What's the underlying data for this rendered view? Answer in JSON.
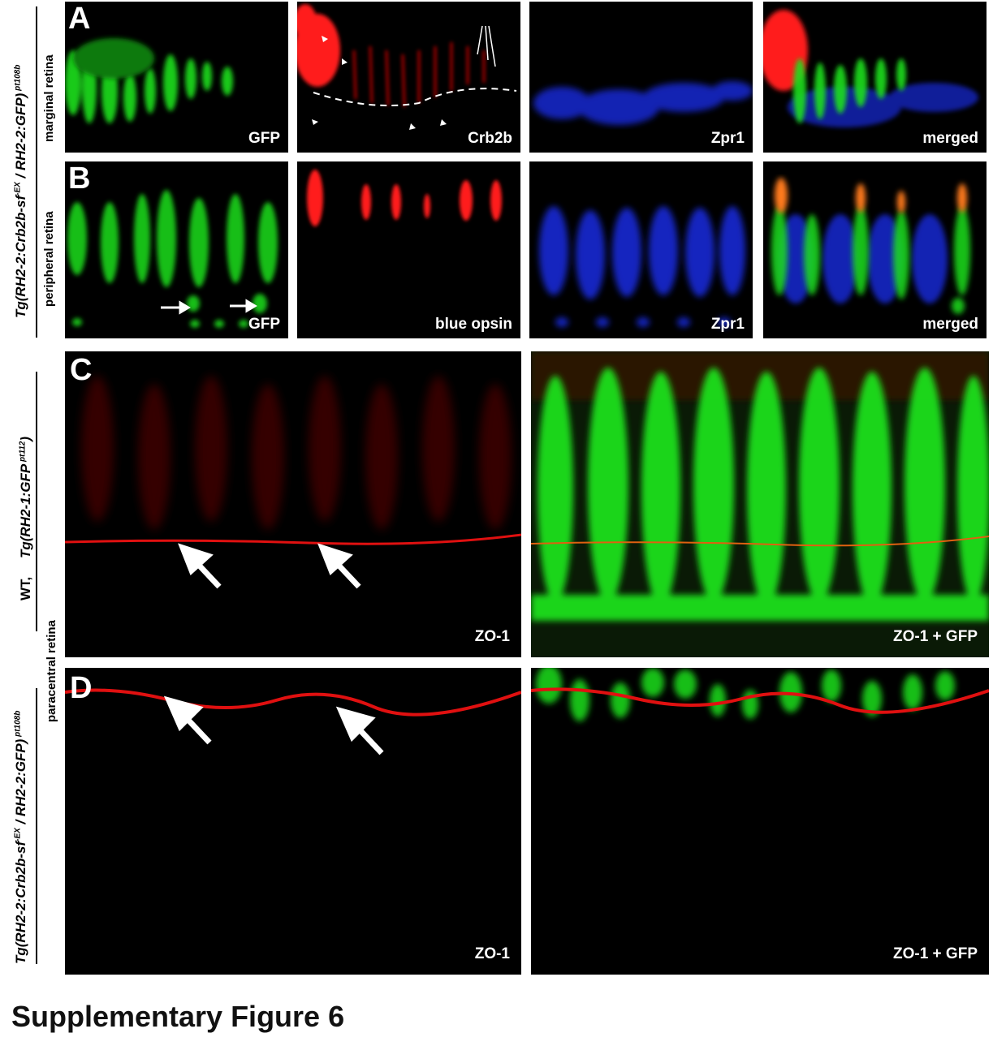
{
  "panels": {
    "a_letter": "A",
    "b_letter": "B",
    "c_letter": "C",
    "d_letter": "D",
    "a1": "GFP",
    "a2": "Crb2b",
    "a3": "Zpr1",
    "a4": "merged",
    "b1": "GFP",
    "b2": "blue opsin",
    "b3": "Zpr1",
    "b4": "merged",
    "c1": "ZO-1",
    "c2": "ZO-1  +  GFP",
    "d1": "ZO-1",
    "d2": "ZO-1  +  GFP"
  },
  "side_labels": {
    "marginal": "marginal retina",
    "peripheral": "peripheral retina",
    "paracentral": "paracentral retina",
    "wt": "WT,"
  },
  "caption": "Supplementary Figure 6",
  "colors": {
    "gfp": "#1fe01f",
    "red": "#ff1a1a",
    "blue": "#1a33ff",
    "background": "#000000"
  }
}
